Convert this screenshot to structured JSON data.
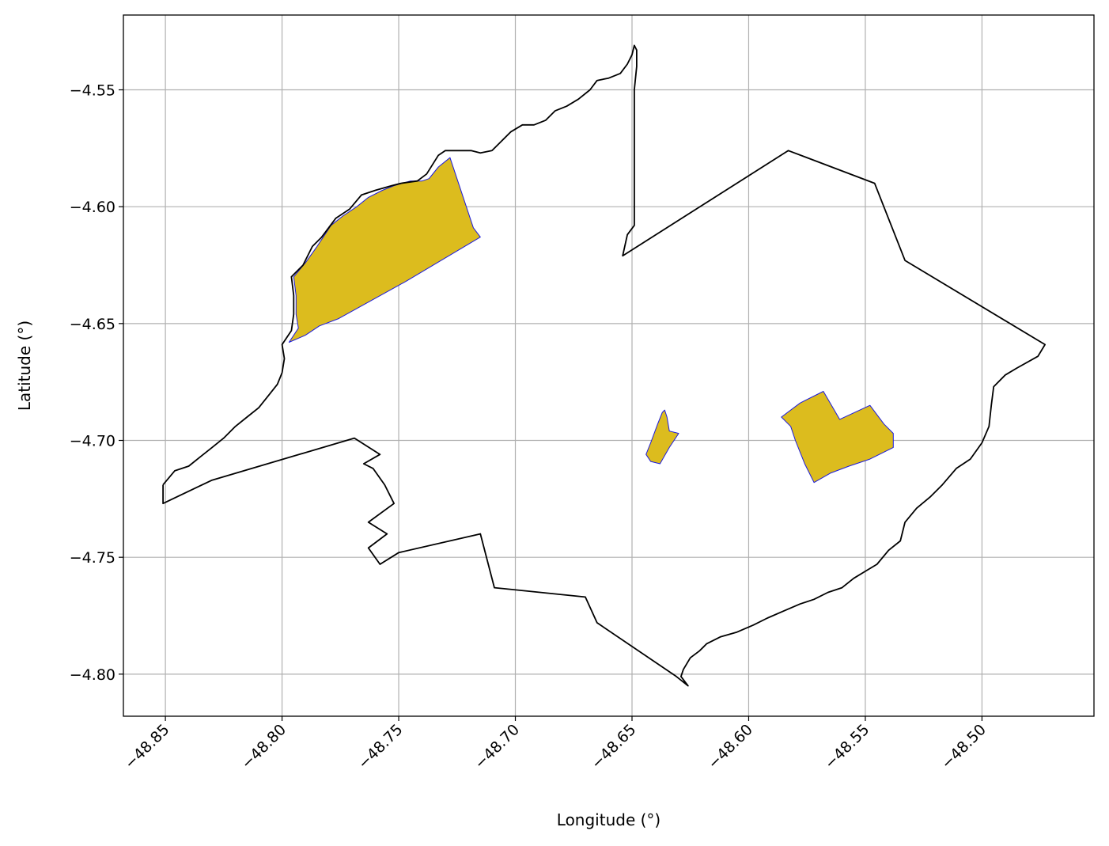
{
  "chart_data": {
    "type": "map",
    "title": "",
    "xlabel": "Longitude (°)",
    "ylabel": "Latitude (°)",
    "xlim": [
      -48.868,
      -48.452
    ],
    "ylim": [
      -4.818,
      -4.518
    ],
    "grid": true,
    "x_ticks": [
      -48.85,
      -48.8,
      -48.75,
      -48.7,
      -48.65,
      -48.6,
      -48.55,
      -48.5
    ],
    "x_tick_labels": [
      "−48.85",
      "−48.80",
      "−48.75",
      "−48.70",
      "−48.65",
      "−48.60",
      "−48.55",
      "−48.50"
    ],
    "y_ticks": [
      -4.55,
      -4.6,
      -4.65,
      -4.7,
      -4.75,
      -4.8
    ],
    "y_tick_labels": [
      "−4.55",
      "−4.60",
      "−4.65",
      "−4.70",
      "−4.75",
      "−4.80"
    ],
    "colors": {
      "boundary": "#000000",
      "fill": "#dcbc1e",
      "fill_edge": "#1a1ae0"
    },
    "boundary": [
      [
        -48.851,
        -4.719
      ],
      [
        -48.846,
        -4.713
      ],
      [
        -48.84,
        -4.711
      ],
      [
        -48.835,
        -4.707
      ],
      [
        -48.83,
        -4.703
      ],
      [
        -48.825,
        -4.699
      ],
      [
        -48.82,
        -4.694
      ],
      [
        -48.815,
        -4.69
      ],
      [
        -48.81,
        -4.686
      ],
      [
        -48.806,
        -4.681
      ],
      [
        -48.802,
        -4.676
      ],
      [
        -48.8,
        -4.671
      ],
      [
        -48.799,
        -4.665
      ],
      [
        -48.8,
        -4.659
      ],
      [
        -48.796,
        -4.653
      ],
      [
        -48.795,
        -4.646
      ],
      [
        -48.795,
        -4.638
      ],
      [
        -48.796,
        -4.63
      ],
      [
        -48.791,
        -4.625
      ],
      [
        -48.787,
        -4.617
      ],
      [
        -48.783,
        -4.613
      ],
      [
        -48.777,
        -4.605
      ],
      [
        -48.771,
        -4.601
      ],
      [
        -48.766,
        -4.595
      ],
      [
        -48.76,
        -4.593
      ],
      [
        -48.753,
        -4.591
      ],
      [
        -48.749,
        -4.59
      ],
      [
        -48.742,
        -4.589
      ],
      [
        -48.738,
        -4.586
      ],
      [
        -48.733,
        -4.578
      ],
      [
        -48.73,
        -4.576
      ],
      [
        -48.725,
        -4.576
      ],
      [
        -48.719,
        -4.576
      ],
      [
        -48.715,
        -4.577
      ],
      [
        -48.71,
        -4.576
      ],
      [
        -48.706,
        -4.572
      ],
      [
        -48.702,
        -4.568
      ],
      [
        -48.697,
        -4.565
      ],
      [
        -48.692,
        -4.565
      ],
      [
        -48.687,
        -4.563
      ],
      [
        -48.683,
        -4.559
      ],
      [
        -48.678,
        -4.557
      ],
      [
        -48.673,
        -4.554
      ],
      [
        -48.668,
        -4.55
      ],
      [
        -48.665,
        -4.546
      ],
      [
        -48.66,
        -4.545
      ],
      [
        -48.655,
        -4.543
      ],
      [
        -48.652,
        -4.539
      ],
      [
        -48.65,
        -4.535
      ],
      [
        -48.649,
        -4.531
      ],
      [
        -48.648,
        -4.533
      ],
      [
        -48.648,
        -4.54
      ],
      [
        -48.649,
        -4.55
      ],
      [
        -48.649,
        -4.56
      ],
      [
        -48.649,
        -4.572
      ],
      [
        -48.649,
        -4.58
      ],
      [
        -48.649,
        -4.59
      ],
      [
        -48.649,
        -4.6
      ],
      [
        -48.649,
        -4.608
      ],
      [
        -48.652,
        -4.612
      ],
      [
        -48.654,
        -4.621
      ],
      [
        -48.583,
        -4.576
      ],
      [
        -48.546,
        -4.59
      ],
      [
        -48.533,
        -4.623
      ],
      [
        -48.473,
        -4.659
      ],
      [
        -48.476,
        -4.664
      ],
      [
        -48.485,
        -4.669
      ],
      [
        -48.49,
        -4.672
      ],
      [
        -48.495,
        -4.677
      ],
      [
        -48.496,
        -4.685
      ],
      [
        -48.497,
        -4.694
      ],
      [
        -48.5,
        -4.701
      ],
      [
        -48.505,
        -4.708
      ],
      [
        -48.511,
        -4.712
      ],
      [
        -48.517,
        -4.719
      ],
      [
        -48.522,
        -4.724
      ],
      [
        -48.528,
        -4.729
      ],
      [
        -48.533,
        -4.735
      ],
      [
        -48.535,
        -4.743
      ],
      [
        -48.54,
        -4.747
      ],
      [
        -48.545,
        -4.753
      ],
      [
        -48.55,
        -4.756
      ],
      [
        -48.555,
        -4.759
      ],
      [
        -48.56,
        -4.763
      ],
      [
        -48.566,
        -4.765
      ],
      [
        -48.572,
        -4.768
      ],
      [
        -48.578,
        -4.77
      ],
      [
        -48.585,
        -4.773
      ],
      [
        -48.592,
        -4.776
      ],
      [
        -48.598,
        -4.779
      ],
      [
        -48.605,
        -4.782
      ],
      [
        -48.612,
        -4.784
      ],
      [
        -48.618,
        -4.787
      ],
      [
        -48.621,
        -4.79
      ],
      [
        -48.625,
        -4.793
      ],
      [
        -48.628,
        -4.798
      ],
      [
        -48.629,
        -4.801
      ],
      [
        -48.626,
        -4.805
      ],
      [
        -48.631,
        -4.801
      ],
      [
        -48.665,
        -4.778
      ],
      [
        -48.67,
        -4.767
      ],
      [
        -48.709,
        -4.763
      ],
      [
        -48.715,
        -4.74
      ],
      [
        -48.75,
        -4.748
      ],
      [
        -48.758,
        -4.753
      ],
      [
        -48.763,
        -4.746
      ],
      [
        -48.755,
        -4.74
      ],
      [
        -48.763,
        -4.735
      ],
      [
        -48.752,
        -4.727
      ],
      [
        -48.756,
        -4.719
      ],
      [
        -48.761,
        -4.712
      ],
      [
        -48.765,
        -4.71
      ],
      [
        -48.758,
        -4.706
      ],
      [
        -48.769,
        -4.699
      ],
      [
        -48.83,
        -4.717
      ],
      [
        -48.851,
        -4.727
      ],
      [
        -48.851,
        -4.719
      ]
    ],
    "regions": [
      {
        "points": [
          [
            -48.797,
            -4.658
          ],
          [
            -48.79,
            -4.655
          ],
          [
            -48.784,
            -4.651
          ],
          [
            -48.776,
            -4.648
          ],
          [
            -48.747,
            -4.632
          ],
          [
            -48.715,
            -4.613
          ],
          [
            -48.718,
            -4.609
          ],
          [
            -48.728,
            -4.579
          ],
          [
            -48.733,
            -4.583
          ],
          [
            -48.737,
            -4.588
          ],
          [
            -48.74,
            -4.589
          ],
          [
            -48.745,
            -4.589
          ],
          [
            -48.752,
            -4.591
          ],
          [
            -48.757,
            -4.593
          ],
          [
            -48.763,
            -4.596
          ],
          [
            -48.768,
            -4.6
          ],
          [
            -48.774,
            -4.604
          ],
          [
            -48.779,
            -4.608
          ],
          [
            -48.785,
            -4.617
          ],
          [
            -48.79,
            -4.624
          ],
          [
            -48.795,
            -4.63
          ],
          [
            -48.794,
            -4.638
          ],
          [
            -48.794,
            -4.646
          ],
          [
            -48.793,
            -4.652
          ],
          [
            -48.797,
            -4.658
          ]
        ]
      },
      {
        "points": [
          [
            -48.642,
            -4.709
          ],
          [
            -48.644,
            -4.706
          ],
          [
            -48.642,
            -4.701
          ],
          [
            -48.639,
            -4.693
          ],
          [
            -48.637,
            -4.688
          ],
          [
            -48.636,
            -4.687
          ],
          [
            -48.635,
            -4.69
          ],
          [
            -48.634,
            -4.696
          ],
          [
            -48.63,
            -4.697
          ],
          [
            -48.634,
            -4.703
          ],
          [
            -48.638,
            -4.71
          ],
          [
            -48.642,
            -4.709
          ]
        ]
      },
      {
        "points": [
          [
            -48.572,
            -4.718
          ],
          [
            -48.576,
            -4.71
          ],
          [
            -48.58,
            -4.7
          ],
          [
            -48.582,
            -4.694
          ],
          [
            -48.586,
            -4.69
          ],
          [
            -48.578,
            -4.684
          ],
          [
            -48.568,
            -4.679
          ],
          [
            -48.561,
            -4.691
          ],
          [
            -48.548,
            -4.685
          ],
          [
            -48.542,
            -4.693
          ],
          [
            -48.538,
            -4.697
          ],
          [
            -48.538,
            -4.703
          ],
          [
            -48.548,
            -4.708
          ],
          [
            -48.557,
            -4.711
          ],
          [
            -48.565,
            -4.714
          ],
          [
            -48.572,
            -4.718
          ]
        ]
      }
    ]
  }
}
